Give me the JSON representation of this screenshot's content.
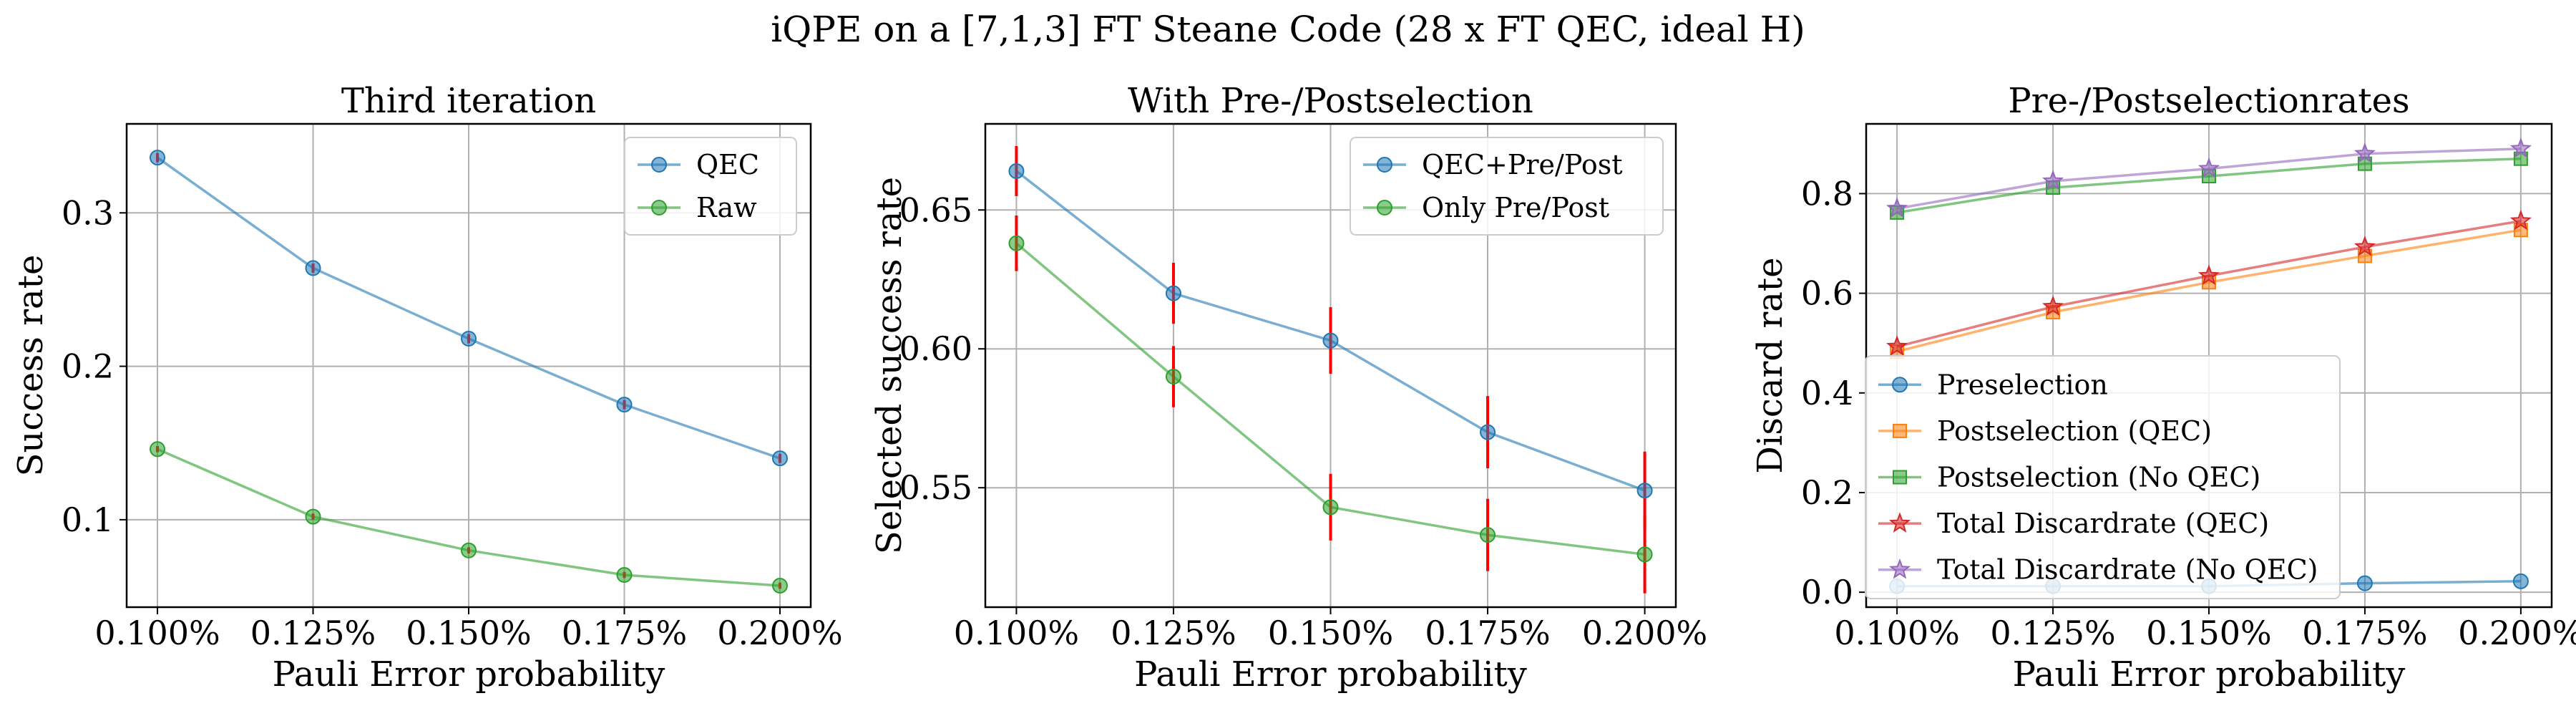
{
  "figure": {
    "suptitle": "iQPE on a [7,1,3] FT Steane Code (28 x FT QEC, ideal H)"
  },
  "colors": {
    "blue": "#1f77b4",
    "orange": "#ff7f0e",
    "green": "#2ca02c",
    "red": "#d62728",
    "purple": "#9467bd",
    "errorbar": "#ff0000",
    "grid": "#b0b0b0"
  },
  "chart_data": [
    {
      "type": "line",
      "title": "Third iteration",
      "xlabel": "Pauli Error probability",
      "ylabel": "Success rate",
      "x": [
        "0.100%",
        "0.125%",
        "0.150%",
        "0.175%",
        "0.200%"
      ],
      "ylim": [
        0.043,
        0.358
      ],
      "yticks": [
        0.1,
        0.2,
        0.3
      ],
      "yticklabels": [
        "0.1",
        "0.2",
        "0.3"
      ],
      "grid": true,
      "legend": "top-right",
      "series": [
        {
          "name": "QEC",
          "color": "#1f77b4",
          "marker": "circle",
          "values": [
            0.336,
            0.264,
            0.218,
            0.175,
            0.14
          ],
          "errors": [
            0.003,
            0.003,
            0.003,
            0.003,
            0.003
          ]
        },
        {
          "name": "Raw",
          "color": "#2ca02c",
          "marker": "circle",
          "values": [
            0.146,
            0.102,
            0.08,
            0.064,
            0.057
          ],
          "errors": [
            0.002,
            0.002,
            0.002,
            0.002,
            0.002
          ]
        }
      ]
    },
    {
      "type": "line",
      "title": "With Pre-/Postselection",
      "xlabel": "Pauli Error probability",
      "ylabel": "Selected success rate",
      "x": [
        "0.100%",
        "0.125%",
        "0.150%",
        "0.175%",
        "0.200%"
      ],
      "ylim": [
        0.507,
        0.681
      ],
      "yticks": [
        0.55,
        0.6,
        0.65
      ],
      "yticklabels": [
        "0.55",
        "0.60",
        "0.65"
      ],
      "grid": true,
      "legend": "top-right",
      "series": [
        {
          "name": "QEC+Pre/Post",
          "color": "#1f77b4",
          "marker": "circle",
          "values": [
            0.664,
            0.62,
            0.603,
            0.57,
            0.549
          ],
          "errors": [
            0.009,
            0.011,
            0.012,
            0.013,
            0.014
          ]
        },
        {
          "name": "Only Pre/Post",
          "color": "#2ca02c",
          "marker": "circle",
          "values": [
            0.638,
            0.59,
            0.543,
            0.533,
            0.526
          ],
          "errors": [
            0.01,
            0.011,
            0.012,
            0.013,
            0.014
          ]
        }
      ]
    },
    {
      "type": "line",
      "title": "Pre-/Postselectionrates",
      "xlabel": "Pauli Error probability",
      "ylabel": "Discard rate",
      "x": [
        "0.100%",
        "0.125%",
        "0.150%",
        "0.175%",
        "0.200%"
      ],
      "ylim": [
        -0.03,
        0.94
      ],
      "yticks": [
        0.0,
        0.2,
        0.4,
        0.6,
        0.8
      ],
      "yticklabels": [
        "0.0",
        "0.2",
        "0.4",
        "0.6",
        "0.8"
      ],
      "grid": true,
      "legend": "lower-left",
      "series": [
        {
          "name": "Preselection",
          "color": "#1f77b4",
          "marker": "circle",
          "values": [
            0.012,
            0.012,
            0.012,
            0.018,
            0.022
          ]
        },
        {
          "name": "Postselection (QEC)",
          "color": "#ff7f0e",
          "marker": "square",
          "values": [
            0.483,
            0.562,
            0.622,
            0.675,
            0.727
          ]
        },
        {
          "name": "Postselection (No QEC)",
          "color": "#2ca02c",
          "marker": "square",
          "values": [
            0.762,
            0.812,
            0.835,
            0.86,
            0.87
          ]
        },
        {
          "name": "Total Discardrate (QEC)",
          "color": "#d62728",
          "marker": "star",
          "values": [
            0.493,
            0.573,
            0.635,
            0.693,
            0.745
          ]
        },
        {
          "name": "Total Discardrate (No QEC)",
          "color": "#9467bd",
          "marker": "star",
          "values": [
            0.77,
            0.825,
            0.85,
            0.88,
            0.89
          ]
        }
      ]
    }
  ]
}
